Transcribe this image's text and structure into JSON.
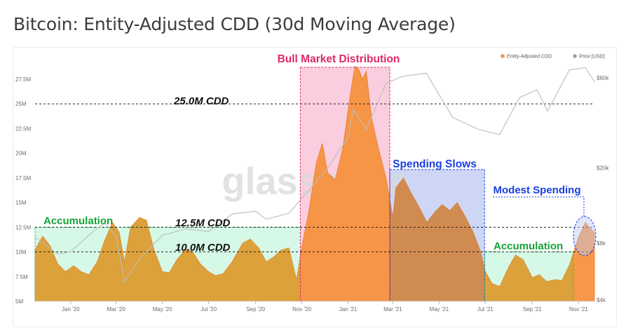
{
  "page_title": "Bitcoin: Entity-Adjusted CDD (30d Moving Average)",
  "watermark": "glassnode",
  "colors": {
    "cdd": "#f7913d",
    "price": "#bcbcbc",
    "distribution_zone": "#f9c6d9",
    "spending_zone": "#bcc9f2",
    "accumulation_zone": "#c8f7df",
    "distribution_text": "#e0286a",
    "spending_text": "#1a3ee0",
    "accumulation_text": "#12a337",
    "threshold_text": "#111111"
  },
  "chart_data": {
    "type": "area",
    "title": "Bitcoin: Entity-Adjusted CDD (30d Moving Average)",
    "legend_position": "top-right",
    "legend": [
      {
        "name": "Entity-Adjusted CDD",
        "color": "#f7913d"
      },
      {
        "name": "Price [USD]",
        "color": "#a0a0a0"
      }
    ],
    "x_ticks": [
      "Jan '20",
      "Mar '20",
      "May '20",
      "Jul '20",
      "Sep '20",
      "Nov '20",
      "Jan '21",
      "Mar '21",
      "May '21",
      "Jul '21",
      "Sep '21",
      "Nov '21"
    ],
    "x_range": [
      "2019-11-15",
      "2021-11-22"
    ],
    "ylim_left": [
      5000000,
      29500000
    ],
    "y_ticks_left": [
      "5M",
      "7.5M",
      "10M",
      "12.5M",
      "15M",
      "17.5M",
      "20M",
      "22.5M",
      "25M",
      "27.5M"
    ],
    "y_ticks_left_values": [
      5000000,
      7500000,
      10000000,
      12500000,
      15000000,
      17500000,
      20000000,
      22500000,
      25000000,
      27500000
    ],
    "y_scale_right": "log",
    "ylim_right": [
      3800,
      75000
    ],
    "y_ticks_right": [
      "$4k",
      "$8k",
      "$20k",
      "$60k"
    ],
    "y_ticks_right_values": [
      4000,
      8000,
      20000,
      60000
    ],
    "series": [
      {
        "name": "Entity-Adjusted CDD",
        "unit": "days destroyed",
        "points": [
          [
            "2019-11-15",
            10200000
          ],
          [
            "2019-11-25",
            11600000
          ],
          [
            "2019-12-05",
            10600000
          ],
          [
            "2019-12-15",
            8800000
          ],
          [
            "2019-12-25",
            8000000
          ],
          [
            "2020-01-05",
            8600000
          ],
          [
            "2020-01-15",
            8000000
          ],
          [
            "2020-01-25",
            7700000
          ],
          [
            "2020-02-05",
            9000000
          ],
          [
            "2020-02-15",
            11200000
          ],
          [
            "2020-02-25",
            13000000
          ],
          [
            "2020-03-05",
            12000000
          ],
          [
            "2020-03-12",
            9000000
          ],
          [
            "2020-03-20",
            12500000
          ],
          [
            "2020-04-01",
            13500000
          ],
          [
            "2020-04-10",
            13200000
          ],
          [
            "2020-04-20",
            10200000
          ],
          [
            "2020-05-01",
            8000000
          ],
          [
            "2020-05-10",
            7900000
          ],
          [
            "2020-05-20",
            9200000
          ],
          [
            "2020-06-01",
            10300000
          ],
          [
            "2020-06-10",
            10000000
          ],
          [
            "2020-06-20",
            8800000
          ],
          [
            "2020-07-01",
            8000000
          ],
          [
            "2020-07-10",
            7600000
          ],
          [
            "2020-07-20",
            7800000
          ],
          [
            "2020-08-01",
            9000000
          ],
          [
            "2020-08-15",
            10900000
          ],
          [
            "2020-08-25",
            11300000
          ],
          [
            "2020-09-05",
            10400000
          ],
          [
            "2020-09-15",
            9000000
          ],
          [
            "2020-09-25",
            9500000
          ],
          [
            "2020-10-05",
            10200000
          ],
          [
            "2020-10-15",
            10400000
          ],
          [
            "2020-10-25",
            7200000
          ],
          [
            "2020-11-01",
            10500000
          ],
          [
            "2020-11-10",
            14000000
          ],
          [
            "2020-11-20",
            19000000
          ],
          [
            "2020-11-28",
            21000000
          ],
          [
            "2020-12-05",
            18000000
          ],
          [
            "2020-12-15",
            17300000
          ],
          [
            "2020-12-25",
            20500000
          ],
          [
            "2021-01-05",
            26500000
          ],
          [
            "2021-01-10",
            28800000
          ],
          [
            "2021-01-15",
            28500000
          ],
          [
            "2021-01-20",
            27500000
          ],
          [
            "2021-01-25",
            28300000
          ],
          [
            "2021-02-01",
            23500000
          ],
          [
            "2021-02-10",
            20500000
          ],
          [
            "2021-02-20",
            17500000
          ],
          [
            "2021-03-01",
            13500000
          ],
          [
            "2021-03-05",
            16500000
          ],
          [
            "2021-03-15",
            17500000
          ],
          [
            "2021-03-25",
            16000000
          ],
          [
            "2021-04-05",
            14500000
          ],
          [
            "2021-04-15",
            13000000
          ],
          [
            "2021-04-25",
            14000000
          ],
          [
            "2021-05-05",
            14800000
          ],
          [
            "2021-05-15",
            14200000
          ],
          [
            "2021-05-25",
            15000000
          ],
          [
            "2021-06-05",
            13500000
          ],
          [
            "2021-06-15",
            12000000
          ],
          [
            "2021-06-25",
            10000000
          ],
          [
            "2021-07-01",
            8000000
          ],
          [
            "2021-07-10",
            6800000
          ],
          [
            "2021-07-20",
            6500000
          ],
          [
            "2021-08-01",
            8500000
          ],
          [
            "2021-08-10",
            9700000
          ],
          [
            "2021-08-20",
            9200000
          ],
          [
            "2021-09-01",
            7400000
          ],
          [
            "2021-09-10",
            7700000
          ],
          [
            "2021-09-20",
            7000000
          ],
          [
            "2021-10-01",
            7200000
          ],
          [
            "2021-10-10",
            7100000
          ],
          [
            "2021-10-20",
            8700000
          ],
          [
            "2021-11-01",
            11500000
          ],
          [
            "2021-11-10",
            13000000
          ],
          [
            "2021-11-15",
            12500000
          ],
          [
            "2021-11-22",
            12000000
          ]
        ]
      },
      {
        "name": "Price [USD]",
        "unit": "USD",
        "points": [
          [
            "2019-11-15",
            8600
          ],
          [
            "2019-12-15",
            7000
          ],
          [
            "2020-01-01",
            7200
          ],
          [
            "2020-02-01",
            9300
          ],
          [
            "2020-02-15",
            10200
          ],
          [
            "2020-03-01",
            8700
          ],
          [
            "2020-03-12",
            5000
          ],
          [
            "2020-04-01",
            6600
          ],
          [
            "2020-05-01",
            8800
          ],
          [
            "2020-06-01",
            9500
          ],
          [
            "2020-07-01",
            9200
          ],
          [
            "2020-08-01",
            11400
          ],
          [
            "2020-09-01",
            11800
          ],
          [
            "2020-09-15",
            10700
          ],
          [
            "2020-10-15",
            11500
          ],
          [
            "2020-11-01",
            13800
          ],
          [
            "2020-12-01",
            19000
          ],
          [
            "2021-01-01",
            29000
          ],
          [
            "2021-01-08",
            41000
          ],
          [
            "2021-01-25",
            32000
          ],
          [
            "2021-02-20",
            56000
          ],
          [
            "2021-03-13",
            61000
          ],
          [
            "2021-04-14",
            63500
          ],
          [
            "2021-05-19",
            37000
          ],
          [
            "2021-06-22",
            32000
          ],
          [
            "2021-07-20",
            30000
          ],
          [
            "2021-08-15",
            47000
          ],
          [
            "2021-09-07",
            52000
          ],
          [
            "2021-09-21",
            40000
          ],
          [
            "2021-10-20",
            66000
          ],
          [
            "2021-11-10",
            68000
          ],
          [
            "2021-11-22",
            57000
          ]
        ]
      }
    ],
    "shaded_regions": [
      {
        "label": "Accumulation",
        "start": "2019-11-15",
        "end": "2020-10-30",
        "cdd_top": 12500000,
        "color": "accumulation"
      },
      {
        "label": "Bull Market Distribution",
        "start": "2020-10-30",
        "end": "2021-02-25",
        "color": "distribution"
      },
      {
        "label": "Spending Slows",
        "start": "2021-02-25",
        "end": "2021-06-30",
        "color": "spending"
      },
      {
        "label": "Accumulation",
        "start": "2021-06-30",
        "end": "2021-10-25",
        "cdd_top": 10000000,
        "color": "accumulation"
      },
      {
        "label": "Modest Spending",
        "start": "2021-10-25",
        "end": "2021-11-22",
        "color": "spending"
      }
    ],
    "reference_lines": [
      {
        "label": "25.0M CDD",
        "value": 25000000
      },
      {
        "label": "12.5M CDD",
        "value": 12500000
      },
      {
        "label": "10.0M CDD",
        "value": 10000000
      }
    ],
    "annotations": {
      "bull_market_distribution": "Bull Market Distribution",
      "spending_slows": "Spending Slows",
      "modest_spending": "Modest Spending",
      "accumulation_left": "Accumulation",
      "accumulation_right": "Accumulation",
      "line_25m": "25.0M CDD",
      "line_12_5m": "12.5M CDD",
      "line_10m": "10.0M CDD"
    }
  }
}
